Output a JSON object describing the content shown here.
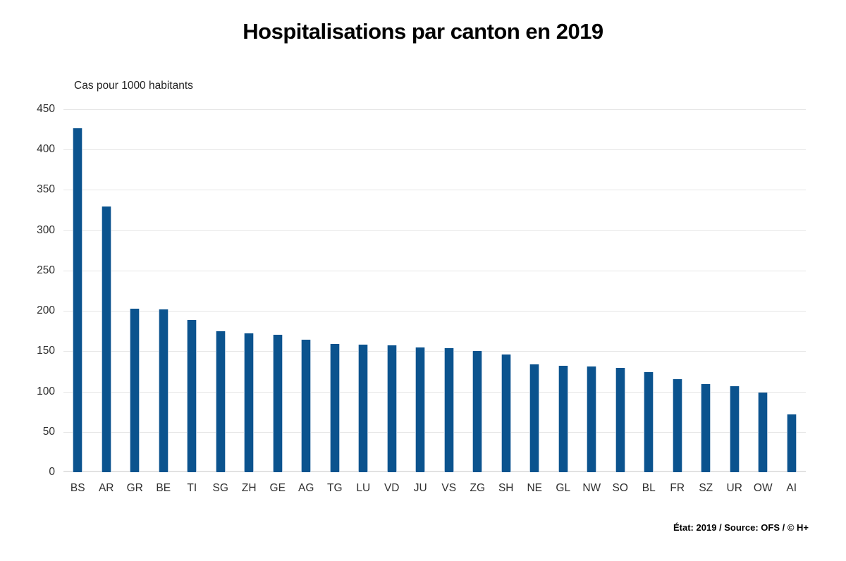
{
  "chart": {
    "title": "Hospitalisations par canton en 2019",
    "unit_label": "Cas pour 1000 habitants",
    "source_note": "État: 2019 / Source: OFS / © H+"
  },
  "chart_data": {
    "type": "bar",
    "title": "Hospitalisations par canton en 2019",
    "xlabel": "",
    "ylabel": "Cas pour 1000 habitants",
    "categories": [
      "BS",
      "AR",
      "GR",
      "BE",
      "TI",
      "SG",
      "ZH",
      "GE",
      "AG",
      "TG",
      "LU",
      "VD",
      "JU",
      "VS",
      "ZG",
      "SH",
      "NE",
      "GL",
      "NW",
      "SO",
      "BL",
      "FR",
      "SZ",
      "UR",
      "OW",
      "AI"
    ],
    "values": [
      426,
      329,
      203,
      202,
      189,
      175,
      172,
      170,
      164,
      159,
      158,
      157,
      155,
      154,
      150,
      146,
      134,
      132,
      131,
      129,
      124,
      115,
      109,
      107,
      99,
      72
    ],
    "ylim": [
      0,
      450
    ],
    "yticks": [
      0,
      50,
      100,
      150,
      200,
      250,
      300,
      350,
      400,
      450
    ],
    "grid": "horizontal",
    "legend": "none",
    "bar_color": "#0b538e",
    "gridline_color": "#e6e6e6",
    "source": "État: 2019 / Source: OFS / © H+"
  }
}
